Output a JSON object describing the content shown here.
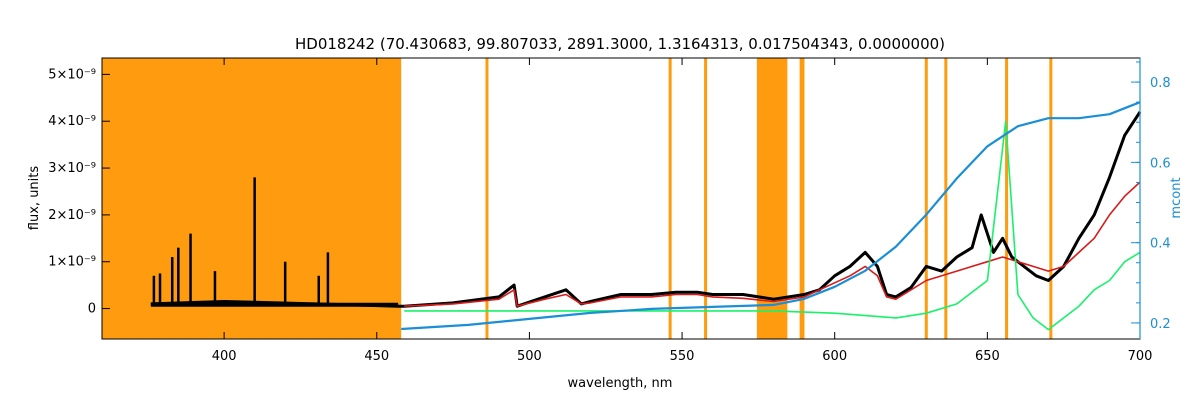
{
  "chart_data": {
    "type": "line",
    "title": "HD018242    (70.430683, 99.807033, 2891.3000, 1.3164313, 0.017504343, 0.0000000)",
    "xlabel": "wavelength, nm",
    "ylabel": "flux, units",
    "y2label": "mcont",
    "xlim": [
      360,
      700
    ],
    "ylim": [
      -6.5e-10,
      5.35e-09
    ],
    "y2lim": [
      0.16,
      0.86
    ],
    "x_ticks": [
      400,
      450,
      500,
      550,
      600,
      650,
      700
    ],
    "y_ticks": [
      {
        "value": 0,
        "label": "0"
      },
      {
        "value": 1e-09,
        "label": "1×10⁻⁹"
      },
      {
        "value": 2e-09,
        "label": "2×10⁻⁹"
      },
      {
        "value": 3e-09,
        "label": "3×10⁻⁹"
      },
      {
        "value": 4e-09,
        "label": "4×10⁻⁹"
      },
      {
        "value": 5e-09,
        "label": "5×10⁻⁹"
      }
    ],
    "y2_ticks": [
      0.2,
      0.4,
      0.6,
      0.8
    ],
    "masked_regions": [
      [
        360,
        458
      ],
      [
        574.5,
        584.5
      ]
    ],
    "mask_lines": [
      486.1,
      546.1,
      557.7,
      589.0,
      589.6,
      630.0,
      636.4,
      656.3,
      670.8
    ],
    "colors": {
      "mask": "#ff9b0f",
      "observed": "#000000",
      "model": "#d91a1a",
      "residual": "#17f26b",
      "continuum": "#1a8fd6",
      "axis2": "#1a8fd6"
    },
    "series": [
      {
        "axis": "left",
        "color": "observed",
        "x": [
          376,
          400,
          430,
          457,
          459,
          475,
          490,
          495,
          496,
          505,
          512,
          517,
          520,
          530,
          540,
          548,
          555,
          560,
          570,
          580,
          590,
          595,
          600,
          605,
          610,
          614,
          617,
          620,
          625,
          630,
          635,
          640,
          645,
          648,
          652,
          655,
          658,
          662,
          666,
          670,
          675,
          680,
          685,
          690,
          695,
          700
        ],
        "y": [
          1e-10,
          1.5e-10,
          1e-10,
          5e-11,
          5e-11,
          1.2e-10,
          2.5e-10,
          5e-10,
          5e-11,
          2.5e-10,
          4e-10,
          1e-10,
          1.5e-10,
          3e-10,
          3e-10,
          3.5e-10,
          3.5e-10,
          3e-10,
          3e-10,
          2e-10,
          3e-10,
          4e-10,
          7e-10,
          9e-10,
          1.2e-09,
          9e-10,
          3e-10,
          2.5e-10,
          4.5e-10,
          9e-10,
          8e-10,
          1.1e-09,
          1.3e-09,
          2e-09,
          1.2e-09,
          1.5e-09,
          1.1e-09,
          9e-10,
          7e-10,
          6e-10,
          9e-10,
          1.5e-09,
          2e-09,
          2.8e-09,
          3.7e-09,
          4.2e-09
        ]
      },
      {
        "axis": "left",
        "color": "model",
        "x": [
          459,
          475,
          490,
          495,
          496,
          505,
          512,
          517,
          520,
          530,
          540,
          548,
          555,
          560,
          570,
          580,
          590,
          600,
          605,
          610,
          614,
          617,
          620,
          630,
          640,
          645,
          650,
          655,
          660,
          665,
          670,
          675,
          680,
          685,
          690,
          695,
          700
        ],
        "y": [
          5e-11,
          1e-10,
          2e-10,
          4e-10,
          5e-11,
          2e-10,
          3e-10,
          1e-10,
          1.2e-10,
          2.5e-10,
          2.5e-10,
          3e-10,
          3e-10,
          2.5e-10,
          2.2e-10,
          1.5e-10,
          2.5e-10,
          5.5e-10,
          7e-10,
          9e-10,
          7e-10,
          2.5e-10,
          2e-10,
          6e-10,
          8e-10,
          9e-10,
          1e-09,
          1.1e-09,
          1e-09,
          9e-10,
          8e-10,
          9e-10,
          1.2e-09,
          1.5e-09,
          2e-09,
          2.4e-09,
          2.7e-09
        ]
      },
      {
        "axis": "left",
        "color": "residual",
        "x": [
          459,
          480,
          500,
          520,
          540,
          560,
          580,
          600,
          620,
          630,
          640,
          650,
          656,
          660,
          665,
          670,
          675,
          680,
          685,
          690,
          695,
          700
        ],
        "y": [
          -5e-11,
          -5e-11,
          -5e-11,
          -5e-11,
          -5e-11,
          -5e-11,
          -5e-11,
          -1e-10,
          -2e-10,
          -1e-10,
          1e-10,
          6e-10,
          4e-09,
          3e-10,
          -2e-10,
          -4.5e-10,
          -2e-10,
          5e-11,
          4e-10,
          6e-10,
          1e-09,
          1.2e-09
        ]
      },
      {
        "axis": "left",
        "color": "observed",
        "x": [
          377,
          379,
          383,
          385,
          389,
          397,
          410,
          420,
          431,
          434
        ],
        "y": [
          7e-10,
          7.5e-10,
          1.1e-09,
          1.3e-09,
          1.6e-09,
          8e-10,
          2.8e-09,
          1e-09,
          7e-10,
          1.2e-09
        ],
        "style": "spikes"
      },
      {
        "axis": "right",
        "color": "continuum",
        "x": [
          458,
          480,
          500,
          520,
          540,
          560,
          580,
          590,
          600,
          610,
          620,
          630,
          640,
          650,
          660,
          670,
          680,
          690,
          700
        ],
        "y": [
          0.185,
          0.195,
          0.21,
          0.225,
          0.235,
          0.24,
          0.245,
          0.26,
          0.29,
          0.33,
          0.39,
          0.47,
          0.56,
          0.64,
          0.69,
          0.71,
          0.71,
          0.72,
          0.75
        ]
      }
    ]
  }
}
